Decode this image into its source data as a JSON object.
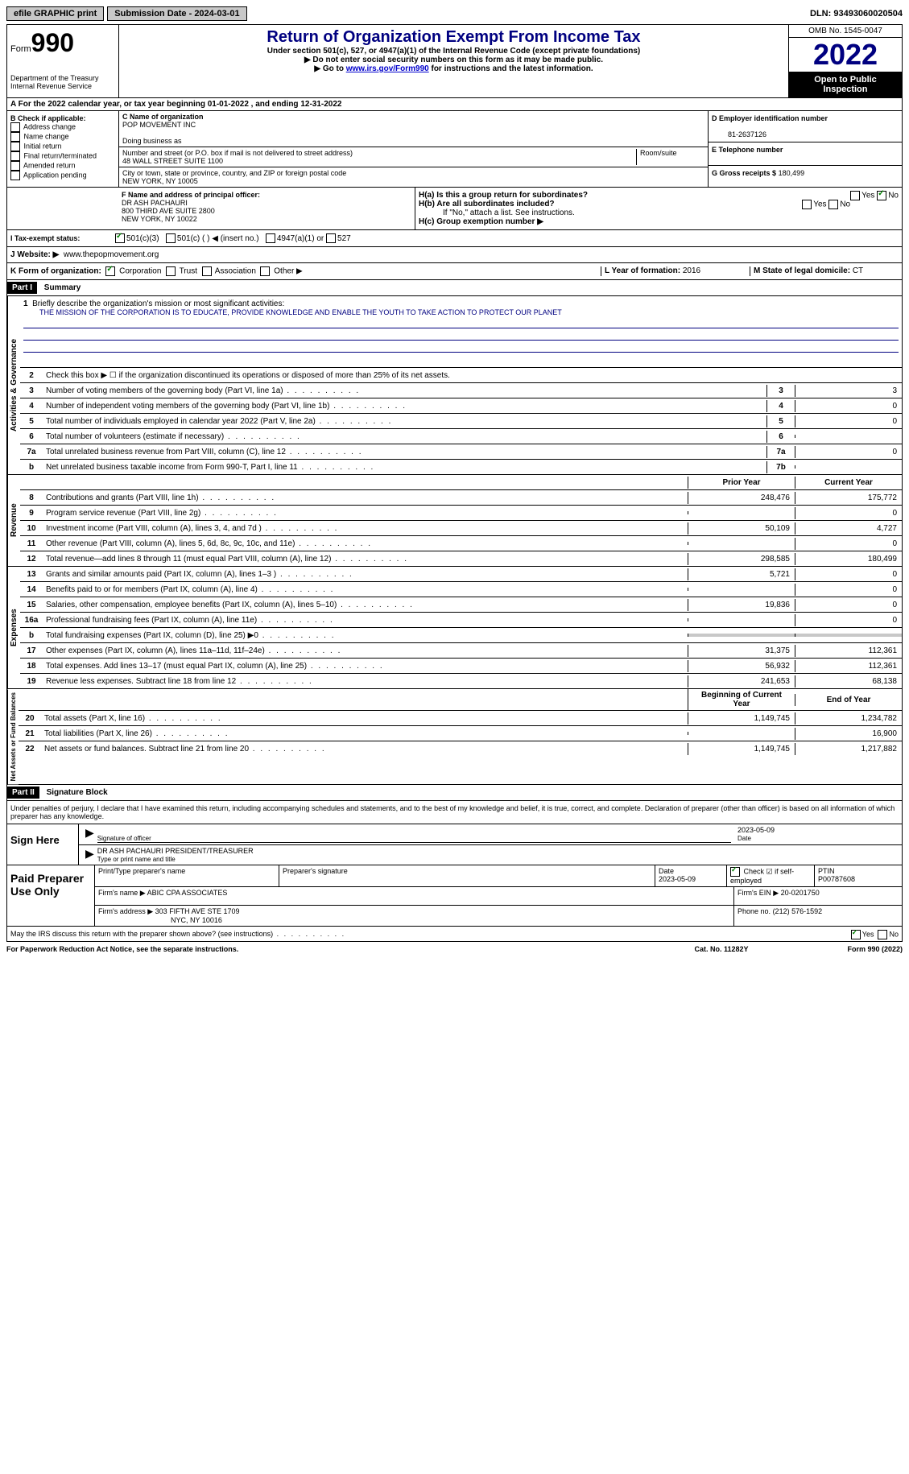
{
  "top": {
    "efile": "efile GRAPHIC print",
    "submission": "Submission Date - 2024-03-01",
    "dln": "DLN: 93493060020504"
  },
  "header": {
    "form_label": "Form",
    "form_num": "990",
    "title": "Return of Organization Exempt From Income Tax",
    "sub1": "Under section 501(c), 527, or 4947(a)(1) of the Internal Revenue Code (except private foundations)",
    "sub2": "▶ Do not enter social security numbers on this form as it may be made public.",
    "sub3_pre": "▶ Go to ",
    "sub3_link": "www.irs.gov/Form990",
    "sub3_post": " for instructions and the latest information.",
    "dept": "Department of the Treasury Internal Revenue Service",
    "omb": "OMB No. 1545-0047",
    "year": "2022",
    "open": "Open to Public Inspection"
  },
  "row_a": "A  For the 2022 calendar year, or tax year beginning 01-01-2022    , and ending 12-31-2022",
  "section_b": {
    "label": "B Check if applicable:",
    "items": [
      "Address change",
      "Name change",
      "Initial return",
      "Final return/terminated",
      "Amended return",
      "Application pending"
    ]
  },
  "section_c": {
    "name_label": "C Name of organization",
    "name": "POP MOVEMENT INC",
    "dba_label": "Doing business as",
    "addr_label": "Number and street (or P.O. box if mail is not delivered to street address)",
    "addr": "48 WALL STREET SUITE 1100",
    "room_label": "Room/suite",
    "city_label": "City or town, state or province, country, and ZIP or foreign postal code",
    "city": "NEW YORK, NY  10005"
  },
  "section_d": {
    "ein_label": "D Employer identification number",
    "ein": "81-2637126",
    "phone_label": "E Telephone number",
    "receipts_label": "G Gross receipts $",
    "receipts": "180,499"
  },
  "section_f": {
    "label": "F  Name and address of principal officer:",
    "name": "DR ASH PACHAURI",
    "addr1": "800 THIRD AVE SUITE 2800",
    "addr2": "NEW YORK, NY  10022"
  },
  "section_h": {
    "ha": "H(a)  Is this a group return for subordinates?",
    "hb": "H(b)  Are all subordinates included?",
    "hb_note": "If \"No,\" attach a list. See instructions.",
    "hc": "H(c)  Group exemption number ▶"
  },
  "tax_exempt": {
    "label": "I  Tax-exempt status:",
    "opt1": "501(c)(3)",
    "opt2": "501(c) (  ) ◀ (insert no.)",
    "opt3": "4947(a)(1) or",
    "opt4": "527"
  },
  "website": {
    "label": "J  Website: ▶",
    "url": "www.thepopmovement.org"
  },
  "row_k": {
    "label": "K Form of organization:",
    "opts": [
      "Corporation",
      "Trust",
      "Association",
      "Other ▶"
    ],
    "l_label": "L Year of formation:",
    "l_val": "2016",
    "m_label": "M State of legal domicile:",
    "m_val": "CT"
  },
  "part1": {
    "header": "Part I",
    "title": "Summary",
    "mission_label": "Briefly describe the organization's mission or most significant activities:",
    "mission": "THE MISSION OF THE CORPORATION IS TO EDUCATE, PROVIDE KNOWLEDGE AND ENABLE THE YOUTH TO TAKE ACTION TO PROTECT OUR PLANET",
    "line2": "Check this box ▶ ☐  if the organization discontinued its operations or disposed of more than 25% of its net assets.",
    "lines_gov": [
      {
        "n": "3",
        "t": "Number of voting members of the governing body (Part VI, line 1a)",
        "b": "3",
        "v": "3"
      },
      {
        "n": "4",
        "t": "Number of independent voting members of the governing body (Part VI, line 1b)",
        "b": "4",
        "v": "0"
      },
      {
        "n": "5",
        "t": "Total number of individuals employed in calendar year 2022 (Part V, line 2a)",
        "b": "5",
        "v": "0"
      },
      {
        "n": "6",
        "t": "Total number of volunteers (estimate if necessary)",
        "b": "6",
        "v": ""
      },
      {
        "n": "7a",
        "t": "Total unrelated business revenue from Part VIII, column (C), line 12",
        "b": "7a",
        "v": "0"
      },
      {
        "n": "b",
        "t": "Net unrelated business taxable income from Form 990-T, Part I, line 11",
        "b": "7b",
        "v": ""
      }
    ],
    "col_prior": "Prior Year",
    "col_current": "Current Year",
    "lines_rev": [
      {
        "n": "8",
        "t": "Contributions and grants (Part VIII, line 1h)",
        "p": "248,476",
        "c": "175,772"
      },
      {
        "n": "9",
        "t": "Program service revenue (Part VIII, line 2g)",
        "p": "",
        "c": "0"
      },
      {
        "n": "10",
        "t": "Investment income (Part VIII, column (A), lines 3, 4, and 7d )",
        "p": "50,109",
        "c": "4,727"
      },
      {
        "n": "11",
        "t": "Other revenue (Part VIII, column (A), lines 5, 6d, 8c, 9c, 10c, and 11e)",
        "p": "",
        "c": "0"
      },
      {
        "n": "12",
        "t": "Total revenue—add lines 8 through 11 (must equal Part VIII, column (A), line 12)",
        "p": "298,585",
        "c": "180,499"
      }
    ],
    "lines_exp": [
      {
        "n": "13",
        "t": "Grants and similar amounts paid (Part IX, column (A), lines 1–3 )",
        "p": "5,721",
        "c": "0"
      },
      {
        "n": "14",
        "t": "Benefits paid to or for members (Part IX, column (A), line 4)",
        "p": "",
        "c": "0"
      },
      {
        "n": "15",
        "t": "Salaries, other compensation, employee benefits (Part IX, column (A), lines 5–10)",
        "p": "19,836",
        "c": "0"
      },
      {
        "n": "16a",
        "t": "Professional fundraising fees (Part IX, column (A), line 11e)",
        "p": "",
        "c": "0"
      },
      {
        "n": "b",
        "t": "Total fundraising expenses (Part IX, column (D), line 25) ▶0",
        "p": "shaded",
        "c": "shaded"
      },
      {
        "n": "17",
        "t": "Other expenses (Part IX, column (A), lines 11a–11d, 11f–24e)",
        "p": "31,375",
        "c": "112,361"
      },
      {
        "n": "18",
        "t": "Total expenses. Add lines 13–17 (must equal Part IX, column (A), line 25)",
        "p": "56,932",
        "c": "112,361"
      },
      {
        "n": "19",
        "t": "Revenue less expenses. Subtract line 18 from line 12",
        "p": "241,653",
        "c": "68,138"
      }
    ],
    "col_begin": "Beginning of Current Year",
    "col_end": "End of Year",
    "lines_net": [
      {
        "n": "20",
        "t": "Total assets (Part X, line 16)",
        "p": "1,149,745",
        "c": "1,234,782"
      },
      {
        "n": "21",
        "t": "Total liabilities (Part X, line 26)",
        "p": "",
        "c": "16,900"
      },
      {
        "n": "22",
        "t": "Net assets or fund balances. Subtract line 21 from line 20",
        "p": "1,149,745",
        "c": "1,217,882"
      }
    ],
    "vert_gov": "Activities & Governance",
    "vert_rev": "Revenue",
    "vert_exp": "Expenses",
    "vert_net": "Net Assets or Fund Balances"
  },
  "part2": {
    "header": "Part II",
    "title": "Signature Block",
    "declare": "Under penalties of perjury, I declare that I have examined this return, including accompanying schedules and statements, and to the best of my knowledge and belief, it is true, correct, and complete. Declaration of preparer (other than officer) is based on all information of which preparer has any knowledge.",
    "sign_here": "Sign Here",
    "sig_officer": "Signature of officer",
    "sig_date": "2023-05-09",
    "officer_name": "DR ASH PACHAURI  PRESIDENT/TREASURER",
    "type_name": "Type or print name and title",
    "paid_prep": "Paid Preparer Use Only",
    "prep_name_label": "Print/Type preparer's name",
    "prep_sig_label": "Preparer's signature",
    "prep_date_label": "Date",
    "prep_date": "2023-05-09",
    "check_if": "Check ☑ if self-employed",
    "ptin_label": "PTIN",
    "ptin": "P00787608",
    "firm_name_label": "Firm's name    ▶",
    "firm_name": "ABIC CPA ASSOCIATES",
    "firm_ein_label": "Firm's EIN ▶",
    "firm_ein": "20-0201750",
    "firm_addr_label": "Firm's address ▶",
    "firm_addr": "303 FIFTH AVE STE 1709",
    "firm_city": "NYC, NY  10016",
    "phone_label": "Phone no.",
    "phone": "(212) 576-1592",
    "discuss": "May the IRS discuss this return with the preparer shown above? (see instructions)"
  },
  "footer": {
    "left": "For Paperwork Reduction Act Notice, see the separate instructions.",
    "mid": "Cat. No. 11282Y",
    "right": "Form 990 (2022)"
  }
}
